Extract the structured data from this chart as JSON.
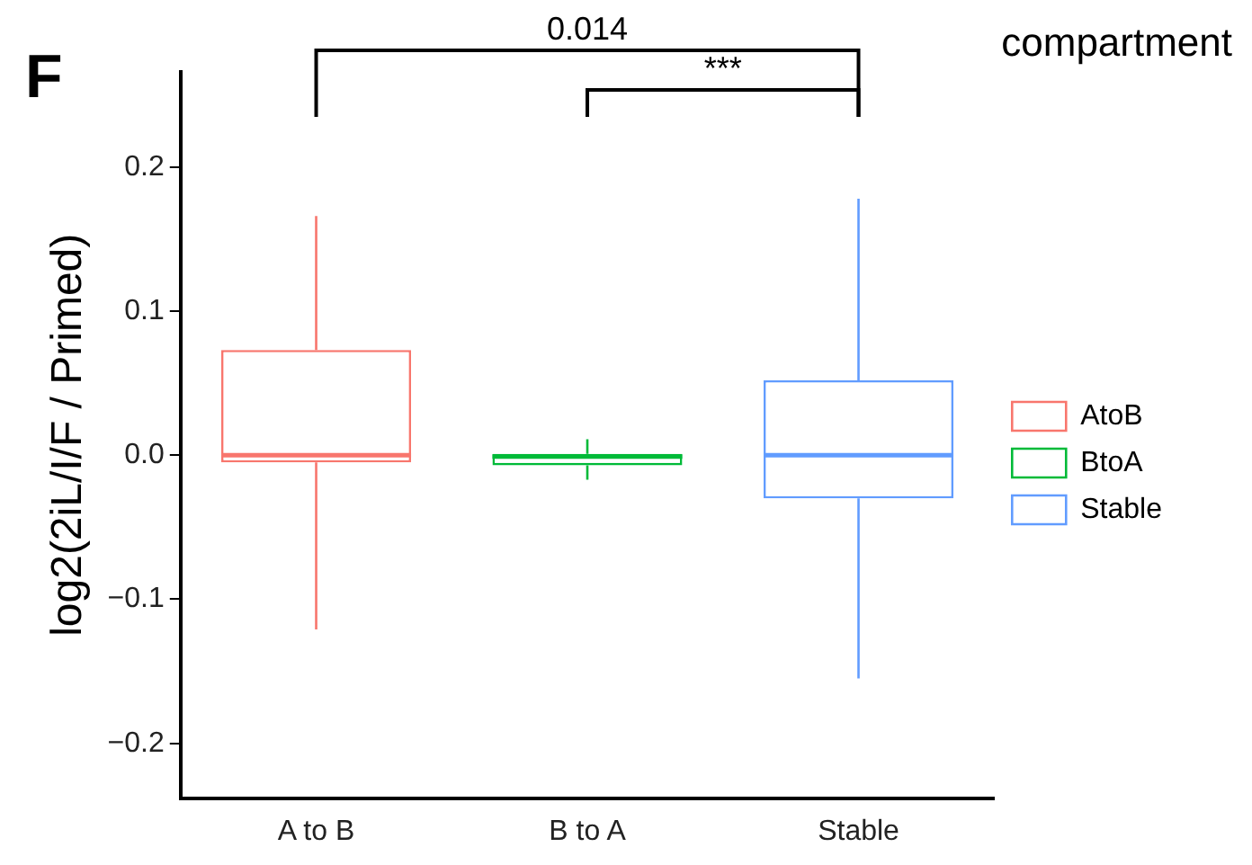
{
  "chart_data": {
    "type": "box",
    "title": "F",
    "ylabel": "log2(2iL/I/F / Primed)",
    "legend_title": "compartment",
    "legend": "right",
    "grid": false,
    "categories": [
      "A to B",
      "B to A",
      "Stable"
    ],
    "ylim": [
      -0.238,
      0.266
    ],
    "yticks": [
      {
        "value": -0.2,
        "label": "−0.2"
      },
      {
        "value": -0.1,
        "label": "−0.1"
      },
      {
        "value": 0,
        "label": "0.0"
      },
      0.1,
      0.2
    ],
    "series": [
      {
        "name": "AtoB",
        "color": "#f8766d",
        "boxes": [
          {
            "low": -0.121,
            "q1": -0.005,
            "median": 0.0,
            "q3": 0.073,
            "high": 0.166
          },
          null,
          null
        ]
      },
      {
        "name": "BtoA",
        "color": "#00ba38",
        "boxes": [
          null,
          {
            "low": -0.017,
            "q1": -0.007,
            "median": -0.001,
            "q3": 0.001,
            "high": 0.011
          },
          null
        ]
      },
      {
        "name": "Stable",
        "color": "#619cff",
        "boxes": [
          null,
          null,
          {
            "low": -0.155,
            "q1": -0.03,
            "median": 0.0,
            "q3": 0.052,
            "high": 0.178
          }
        ]
      }
    ],
    "annotations": [
      "0.014",
      "***"
    ]
  }
}
